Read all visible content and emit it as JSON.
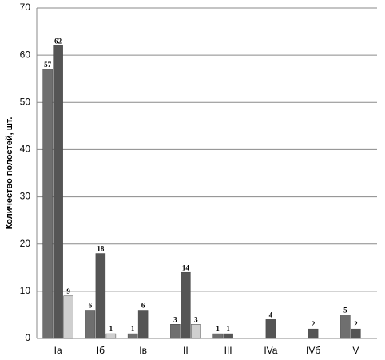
{
  "chart_data": {
    "type": "bar",
    "y_label": "Количество полостей, шт.",
    "categories": [
      "Ia",
      "Iб",
      "Iв",
      "II",
      "III",
      "IVa",
      "IVб",
      "V"
    ],
    "series": [
      {
        "color": "#6f6f6f",
        "values": [
          57,
          6,
          1,
          3,
          1,
          null,
          null,
          5
        ]
      },
      {
        "color": "#555555",
        "values": [
          62,
          18,
          6,
          14,
          1,
          4,
          2,
          2
        ]
      },
      {
        "color": "#cfcfcf",
        "values": [
          9,
          1,
          null,
          3,
          null,
          null,
          null,
          null
        ]
      }
    ],
    "ylim": [
      0,
      70
    ],
    "yticks": [
      0,
      10,
      20,
      30,
      40,
      50,
      60,
      70
    ],
    "grid": true
  }
}
